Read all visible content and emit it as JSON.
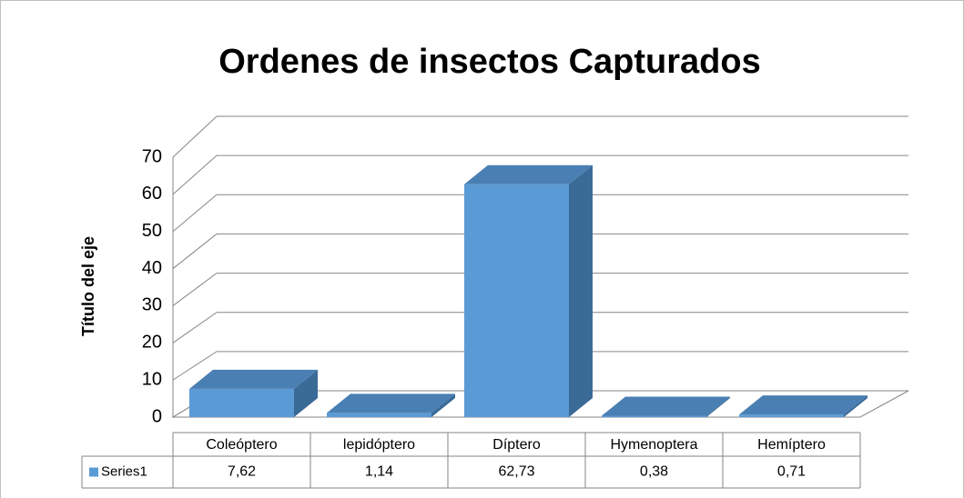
{
  "chart_data": {
    "type": "bar3d",
    "title": "Ordenes de insectos Capturados",
    "y_label": "Título del eje",
    "categories": [
      "Coleóptero",
      "lepidóptero",
      "Díptero",
      "Hymenoptera",
      "Hemíptero"
    ],
    "series": [
      {
        "name": "Series1",
        "color": "#5b9bd5",
        "values": [
          7.62,
          1.14,
          62.73,
          0.38,
          0.71
        ],
        "value_labels": [
          "7,62",
          "1,14",
          "62,73",
          "0,38",
          "0,71"
        ]
      }
    ],
    "ylim": [
      0,
      70
    ],
    "yticks": [
      0,
      10,
      20,
      30,
      40,
      50,
      60,
      70
    ],
    "grid": true,
    "data_table": true
  }
}
